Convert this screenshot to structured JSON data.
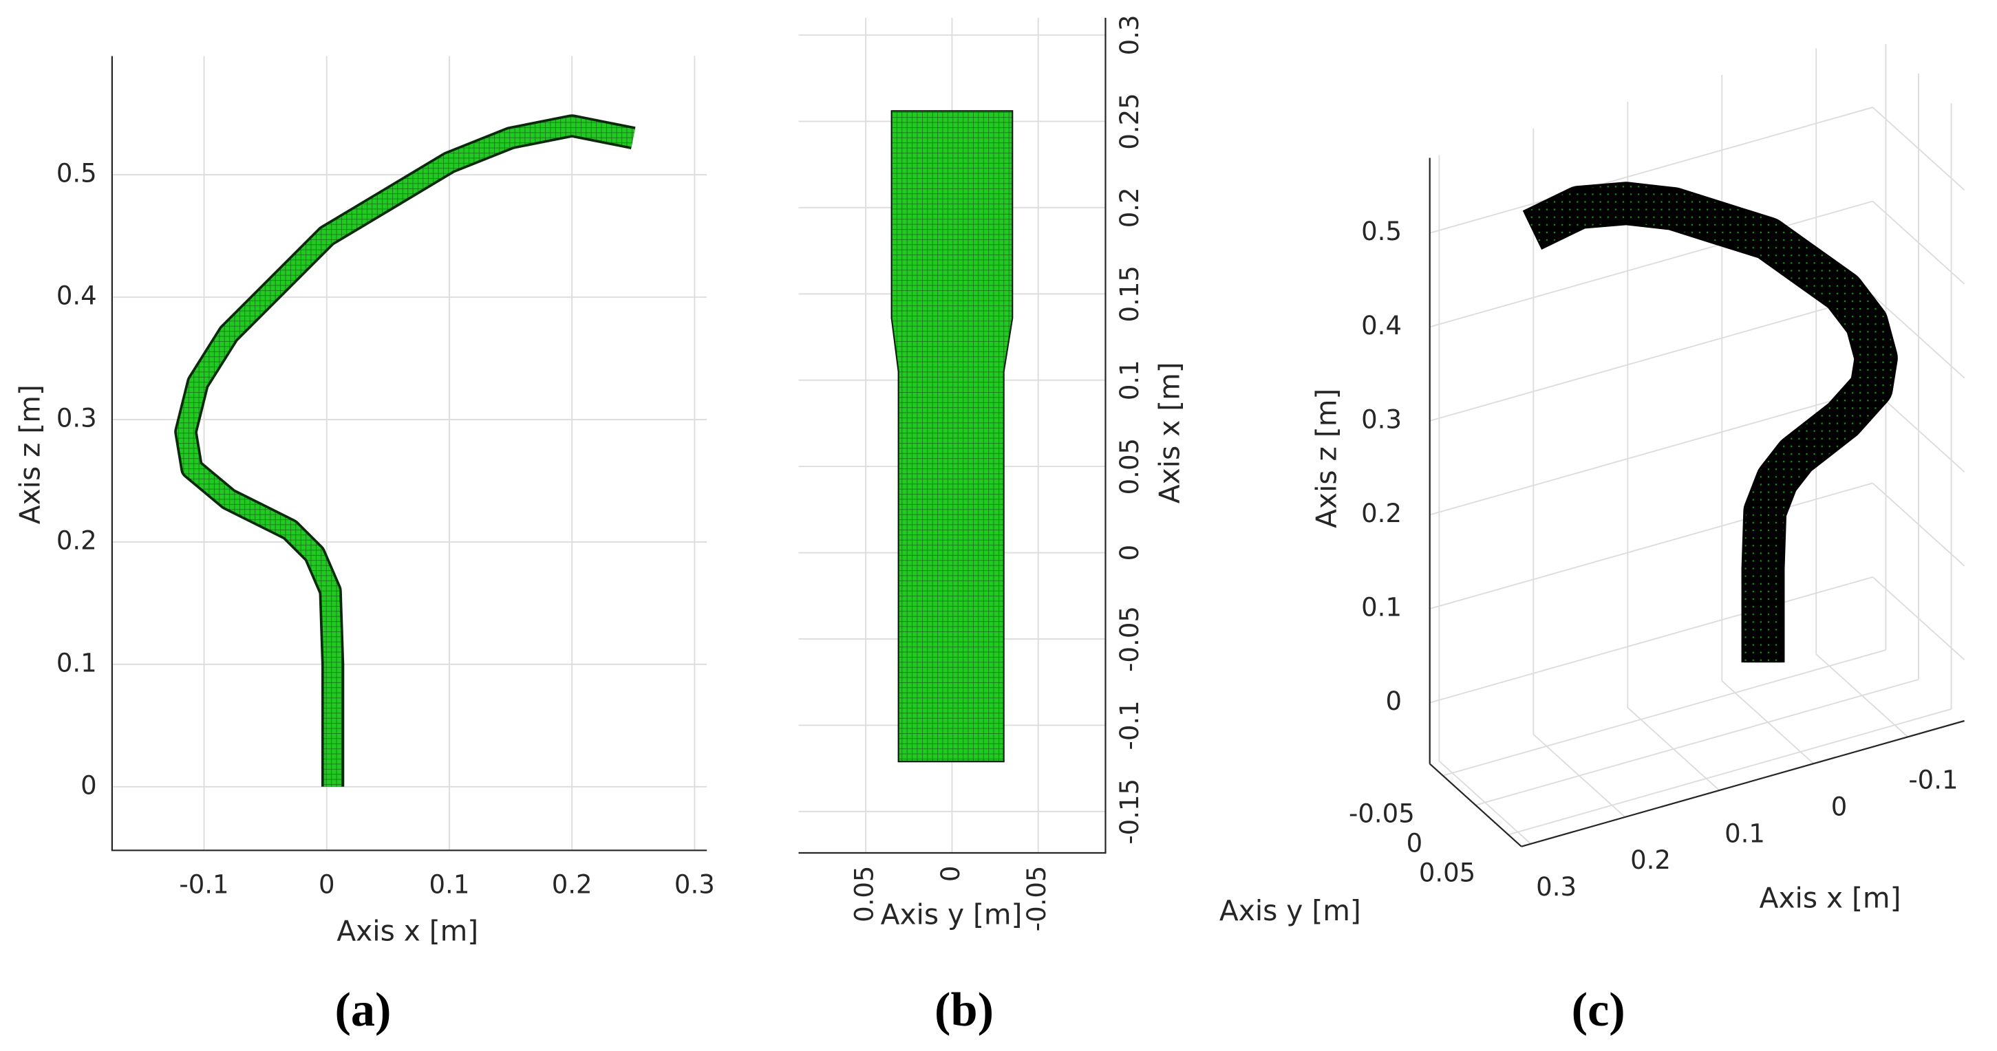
{
  "chart_data": [
    {
      "type": "line",
      "label": "(a)",
      "xlabel": "Axis x [m]",
      "ylabel": "Axis z [m]",
      "color": "#22c922",
      "x": [
        0.005,
        0.005,
        0.003,
        -0.01,
        -0.03,
        -0.08,
        -0.11,
        -0.115,
        -0.105,
        -0.08,
        -0.04,
        0,
        0.05,
        0.1,
        0.15,
        0.2,
        0.25
      ],
      "values": [
        0,
        0.1,
        0.16,
        0.19,
        0.21,
        0.235,
        0.26,
        0.29,
        0.33,
        0.37,
        0.41,
        0.45,
        0.48,
        0.51,
        0.53,
        0.54,
        0.53
      ],
      "xlim": [
        -0.175,
        0.31
      ],
      "ylim": [
        -0.052,
        0.597
      ],
      "xticks": [
        -0.1,
        0,
        0.1,
        0.2,
        0.3
      ],
      "yticks": [
        0,
        0.1,
        0.2,
        0.3,
        0.4,
        0.5
      ],
      "grid": true
    },
    {
      "type": "polygon",
      "label": "(b)",
      "xlabel": "Axis y [m]",
      "ylabel": "Axis x [m]",
      "color": "#22c922",
      "x": [
        0.035,
        -0.035,
        -0.035,
        -0.03,
        -0.03,
        0.031,
        0.031,
        0.035
      ],
      "values": [
        0.256,
        0.256,
        0.136,
        0.105,
        -0.121,
        -0.121,
        0.105,
        0.136
      ],
      "xlim": [
        0.089,
        -0.089
      ],
      "ylim": [
        -0.174,
        0.31
      ],
      "xticks": [
        0.05,
        0,
        -0.05
      ],
      "yticks": [
        -0.15,
        -0.1,
        -0.05,
        0,
        0.05,
        0.1,
        0.15,
        0.2,
        0.25,
        0.3
      ],
      "grid": true
    },
    {
      "type": "line3d",
      "label": "(c)",
      "xlabel": "Axis x [m]",
      "ylabel": "Axis y [m]",
      "zlabel": "Axis z [m]",
      "color": "#000000",
      "x": [
        0.005,
        0.005,
        0.003,
        -0.01,
        -0.03,
        -0.08,
        -0.11,
        -0.115,
        -0.105,
        -0.08,
        -0.04,
        0,
        0.05,
        0.1,
        0.15,
        0.2,
        0.25
      ],
      "values": [
        0,
        0.1,
        0.16,
        0.19,
        0.21,
        0.235,
        0.26,
        0.29,
        0.33,
        0.37,
        0.41,
        0.45,
        0.48,
        0.51,
        0.53,
        0.54,
        0.53
      ],
      "xlim": [
        -0.16,
        0.31
      ],
      "ylim": [
        -0.07,
        0.07
      ],
      "zlim": [
        -0.065,
        0.58
      ],
      "xticks": [
        -0.1,
        0,
        0.1,
        0.2,
        0.3
      ],
      "yticks": [
        -0.05,
        0,
        0.05
      ],
      "zticks": [
        0,
        0.1,
        0.2,
        0.3,
        0.4,
        0.5
      ],
      "grid": true
    }
  ]
}
